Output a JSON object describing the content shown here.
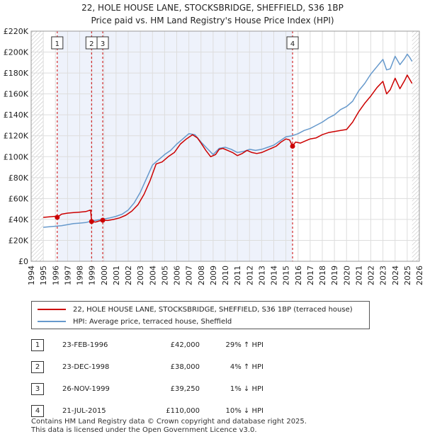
{
  "title_line1": "22, HOLE HOUSE LANE, STOCKSBRIDGE, SHEFFIELD, S36 1BP",
  "title_line2": "Price paid vs. HM Land Registry's House Price Index (HPI)",
  "colors": {
    "property": "#cc0000",
    "hpi": "#6699cc",
    "sale_band": "#eef2fb",
    "grid": "#dddddd",
    "future_hatch": "#bbbbbb"
  },
  "chart_data": {
    "type": "line",
    "title": "Price paid vs. HM Land Registry's House Price Index (HPI)",
    "xlabel": "",
    "ylabel": "",
    "xlim": [
      1994,
      2026
    ],
    "ylim": [
      0,
      220000
    ],
    "y_ticks": [
      0,
      20000,
      40000,
      60000,
      80000,
      100000,
      120000,
      140000,
      160000,
      180000,
      200000,
      220000
    ],
    "y_tick_labels": [
      "£0",
      "£20K",
      "£40K",
      "£60K",
      "£80K",
      "£100K",
      "£120K",
      "£140K",
      "£160K",
      "£180K",
      "£200K",
      "£220K"
    ],
    "x_ticks": [
      "1994",
      "1995",
      "1996",
      "1997",
      "1998",
      "1999",
      "2000",
      "2001",
      "2002",
      "2003",
      "2004",
      "2005",
      "2006",
      "2007",
      "2008",
      "2009",
      "2010",
      "2011",
      "2012",
      "2013",
      "2014",
      "2015",
      "2016",
      "2017",
      "2018",
      "2019",
      "2020",
      "2021",
      "2022",
      "2023",
      "2024",
      "2025",
      "2026"
    ],
    "shaded_band": {
      "from": 1996.15,
      "to": 2015.55
    },
    "data_start": 1995.0,
    "data_end": 2025.4,
    "sale_markers": [
      {
        "label": "1",
        "x": 1996.15,
        "y": 42000
      },
      {
        "label": "2",
        "x": 1998.98,
        "y": 38000
      },
      {
        "label": "3",
        "x": 1999.9,
        "y": 39250
      },
      {
        "label": "4",
        "x": 2015.55,
        "y": 110000
      }
    ],
    "series": [
      {
        "name": "22, HOLE HOUSE LANE, STOCKSBRIDGE, SHEFFIELD, S36 1BP (terraced house)",
        "x": [
          1995.0,
          1995.5,
          1996.0,
          1996.15,
          1996.5,
          1997.0,
          1997.5,
          1998.0,
          1998.5,
          1998.9,
          1998.98,
          1999.3,
          1999.6,
          1999.9,
          2000.3,
          2000.8,
          2001.3,
          2001.8,
          2002.3,
          2002.8,
          2003.3,
          2003.8,
          2004.3,
          2004.8,
          2005.3,
          2005.8,
          2006.3,
          2006.8,
          2007.3,
          2007.7,
          2008.0,
          2008.4,
          2008.8,
          2009.2,
          2009.5,
          2009.8,
          2010.2,
          2010.6,
          2011.0,
          2011.4,
          2011.8,
          2012.2,
          2012.6,
          2013.0,
          2013.4,
          2013.8,
          2014.2,
          2014.6,
          2015.0,
          2015.3,
          2015.55,
          2015.8,
          2016.2,
          2016.6,
          2017.0,
          2017.5,
          2018.0,
          2018.5,
          2019.0,
          2019.5,
          2020.0,
          2020.5,
          2021.0,
          2021.5,
          2022.0,
          2022.5,
          2023.0,
          2023.3,
          2023.6,
          2024.0,
          2024.4,
          2024.8,
          2025.0,
          2025.3,
          2025.4
        ],
        "y": [
          42000,
          42500,
          43000,
          42000,
          45000,
          46000,
          46500,
          47000,
          47500,
          49000,
          38000,
          37500,
          38500,
          39250,
          39000,
          40000,
          41500,
          44000,
          48000,
          54000,
          64000,
          77000,
          93000,
          95000,
          100000,
          104000,
          112000,
          117000,
          121000,
          118000,
          113000,
          106000,
          100000,
          102000,
          107000,
          108000,
          106000,
          104000,
          101000,
          103000,
          106000,
          104000,
          103000,
          104000,
          106000,
          108000,
          110000,
          114000,
          117000,
          116000,
          110000,
          114000,
          113000,
          115000,
          117000,
          118000,
          121000,
          123000,
          124000,
          125000,
          126000,
          133000,
          143000,
          151000,
          158000,
          166000,
          172000,
          160000,
          164000,
          175000,
          165000,
          173000,
          178000,
          172000,
          170000
        ]
      },
      {
        "name": "HPI: Average price, terraced house, Sheffield",
        "x": [
          1995.0,
          1995.5,
          1996.0,
          1996.5,
          1997.0,
          1997.5,
          1998.0,
          1998.5,
          1999.0,
          1999.5,
          2000.0,
          2000.5,
          2001.0,
          2001.5,
          2002.0,
          2002.5,
          2003.0,
          2003.5,
          2004.0,
          2004.5,
          2005.0,
          2005.5,
          2006.0,
          2006.5,
          2007.0,
          2007.5,
          2008.0,
          2008.5,
          2009.0,
          2009.5,
          2010.0,
          2010.5,
          2011.0,
          2011.5,
          2012.0,
          2012.5,
          2013.0,
          2013.5,
          2014.0,
          2014.5,
          2015.0,
          2015.5,
          2016.0,
          2016.5,
          2017.0,
          2017.5,
          2018.0,
          2018.5,
          2019.0,
          2019.5,
          2020.0,
          2020.5,
          2021.0,
          2021.5,
          2022.0,
          2022.5,
          2023.0,
          2023.3,
          2023.6,
          2024.0,
          2024.4,
          2024.8,
          2025.0,
          2025.2,
          2025.4
        ],
        "y": [
          32500,
          33000,
          33500,
          34000,
          35000,
          36000,
          36500,
          37000,
          38500,
          39500,
          40500,
          41500,
          43000,
          45000,
          49000,
          56000,
          66000,
          79000,
          92000,
          97000,
          102000,
          106000,
          112000,
          117000,
          122000,
          121000,
          114000,
          108000,
          102000,
          108000,
          109000,
          107000,
          104000,
          105000,
          107000,
          106000,
          107000,
          109000,
          111000,
          115000,
          119000,
          120000,
          122000,
          125000,
          127000,
          130000,
          133000,
          137000,
          140000,
          145000,
          148000,
          153000,
          163000,
          170000,
          179000,
          186000,
          193000,
          183000,
          184000,
          196000,
          188000,
          194000,
          198000,
          195000,
          191000
        ]
      }
    ]
  },
  "legend": {
    "property_label": "22, HOLE HOUSE LANE, STOCKSBRIDGE, SHEFFIELD, S36 1BP (terraced house)",
    "hpi_label": "HPI: Average price, terraced house, Sheffield"
  },
  "transactions": [
    {
      "num": "1",
      "date": "23-FEB-1996",
      "price": "£42,000",
      "hpi": "29% ↑ HPI"
    },
    {
      "num": "2",
      "date": "23-DEC-1998",
      "price": "£38,000",
      "hpi": "4% ↑ HPI"
    },
    {
      "num": "3",
      "date": "26-NOV-1999",
      "price": "£39,250",
      "hpi": "1% ↓ HPI"
    },
    {
      "num": "4",
      "date": "21-JUL-2015",
      "price": "£110,000",
      "hpi": "10% ↓ HPI"
    }
  ],
  "footer": {
    "line1": "Contains HM Land Registry data © Crown copyright and database right 2025.",
    "line2": "This data is licensed under the Open Government Licence v3.0."
  }
}
